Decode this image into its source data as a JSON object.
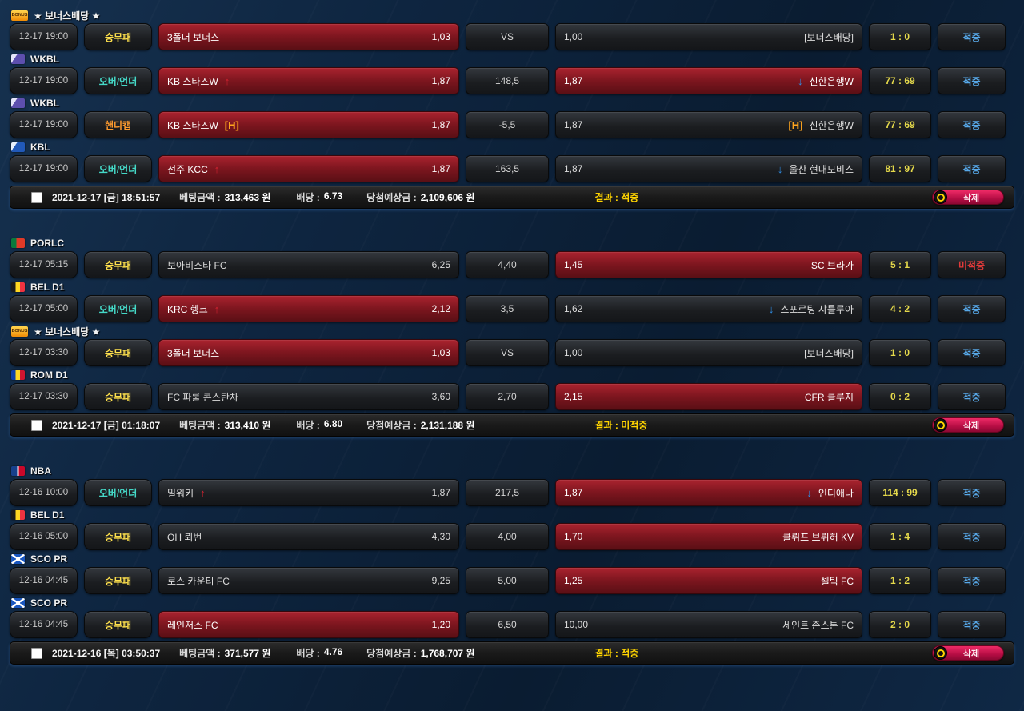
{
  "icons": {
    "bonus_text": "BONUS"
  },
  "markers": {
    "up": {
      "glyph": "↑",
      "color": "#d32330"
    },
    "down": {
      "glyph": "↓",
      "color": "#2f8fe8"
    },
    "h": {
      "glyph": "[H]",
      "color": "#ffa51e"
    }
  },
  "colors": {
    "selected_box": "#8d1a24",
    "hit_text": "#57a8e8",
    "miss_text": "#e03a3a",
    "score_text": "#e5d94b",
    "type_win_draw_lose": "#ffe14d",
    "type_over_under": "#45d9c8",
    "type_handicap": "#ff9b2e",
    "footer_result_text": "#ffd400",
    "delete_button": "#c41355"
  },
  "groups": [
    {
      "entries": [
        {
          "league": {
            "icon": "bonus",
            "name": "★ 보너스배당 ★"
          },
          "time": "12-17 19:00",
          "type": {
            "label": "승무패",
            "color": "#ffe14d"
          },
          "home": {
            "name": "3폴더 보너스",
            "odds": "1,03",
            "selected": true,
            "marker": null
          },
          "center": "VS",
          "away": {
            "name": "[보너스배당]",
            "odds": "1,00",
            "selected": false,
            "marker": null
          },
          "score": "1 : 0",
          "result": {
            "label": "적중",
            "state": "hit"
          }
        },
        {
          "league": {
            "icon": "wkbl",
            "name": "WKBL"
          },
          "time": "12-17 19:00",
          "type": {
            "label": "오버/언더",
            "color": "#45d9c8"
          },
          "home": {
            "name": "KB 스타즈W",
            "odds": "1,87",
            "selected": true,
            "marker": "up"
          },
          "center": "148,5",
          "away": {
            "name": "신한은행W",
            "odds": "1,87",
            "selected": true,
            "marker": "down"
          },
          "score": "77 : 69",
          "result": {
            "label": "적중",
            "state": "hit"
          }
        },
        {
          "league": {
            "icon": "wkbl",
            "name": "WKBL"
          },
          "time": "12-17 19:00",
          "type": {
            "label": "핸디캡",
            "color": "#ff9b2e"
          },
          "home": {
            "name": "KB 스타즈W",
            "odds": "1,87",
            "selected": true,
            "marker": "h"
          },
          "center": "-5,5",
          "away": {
            "name": "신한은행W",
            "odds": "1,87",
            "selected": false,
            "marker": "h"
          },
          "score": "77 : 69",
          "result": {
            "label": "적중",
            "state": "hit"
          }
        },
        {
          "league": {
            "icon": "kbl",
            "name": "KBL"
          },
          "time": "12-17 19:00",
          "type": {
            "label": "오버/언더",
            "color": "#45d9c8"
          },
          "home": {
            "name": "전주 KCC",
            "odds": "1,87",
            "selected": true,
            "marker": "up"
          },
          "center": "163,5",
          "away": {
            "name": "울산 현대모비스",
            "odds": "1,87",
            "selected": false,
            "marker": "down"
          },
          "score": "81 : 97",
          "result": {
            "label": "적중",
            "state": "hit"
          }
        }
      ],
      "summary": {
        "datetime": "2021-12-17 [금] 18:51:57",
        "bet_label": "베팅금액 :",
        "bet_value": "313,463 원",
        "odds_label": "배당 :",
        "odds_value": "6.73",
        "win_label": "당첨예상금 :",
        "win_value": "2,109,606 원",
        "result_text": "결과 : 적중",
        "delete_label": "삭제"
      }
    },
    {
      "entries": [
        {
          "league": {
            "icon": "por",
            "name": "PORLC"
          },
          "time": "12-17 05:15",
          "type": {
            "label": "승무패",
            "color": "#ffe14d"
          },
          "home": {
            "name": "보아비스타 FC",
            "odds": "6,25",
            "selected": false,
            "marker": null
          },
          "center": "4,40",
          "away": {
            "name": "SC 브라가",
            "odds": "1,45",
            "selected": true,
            "marker": null
          },
          "score": "5 : 1",
          "result": {
            "label": "미적중",
            "state": "miss"
          }
        },
        {
          "league": {
            "icon": "bel",
            "name": "BEL D1"
          },
          "time": "12-17 05:00",
          "type": {
            "label": "오버/언더",
            "color": "#45d9c8"
          },
          "home": {
            "name": "KRC 헹크",
            "odds": "2,12",
            "selected": true,
            "marker": "up"
          },
          "center": "3,5",
          "away": {
            "name": "스포르팅 샤를루아",
            "odds": "1,62",
            "selected": false,
            "marker": "down"
          },
          "score": "4 : 2",
          "result": {
            "label": "적중",
            "state": "hit"
          }
        },
        {
          "league": {
            "icon": "bonus",
            "name": "★ 보너스배당 ★"
          },
          "time": "12-17 03:30",
          "type": {
            "label": "승무패",
            "color": "#ffe14d"
          },
          "home": {
            "name": "3폴더 보너스",
            "odds": "1,03",
            "selected": true,
            "marker": null
          },
          "center": "VS",
          "away": {
            "name": "[보너스배당]",
            "odds": "1,00",
            "selected": false,
            "marker": null
          },
          "score": "1 : 0",
          "result": {
            "label": "적중",
            "state": "hit"
          }
        },
        {
          "league": {
            "icon": "rom",
            "name": "ROM D1"
          },
          "time": "12-17 03:30",
          "type": {
            "label": "승무패",
            "color": "#ffe14d"
          },
          "home": {
            "name": "FC 파룰 콘스탄차",
            "odds": "3,60",
            "selected": false,
            "marker": null
          },
          "center": "2,70",
          "away": {
            "name": "CFR 클루지",
            "odds": "2,15",
            "selected": true,
            "marker": null
          },
          "score": "0 : 2",
          "result": {
            "label": "적중",
            "state": "hit"
          }
        }
      ],
      "summary": {
        "datetime": "2021-12-17 [금] 01:18:07",
        "bet_label": "베팅금액 :",
        "bet_value": "313,410 원",
        "odds_label": "배당 :",
        "odds_value": "6.80",
        "win_label": "당첨예상금 :",
        "win_value": "2,131,188 원",
        "result_text": "결과 : 미적중",
        "delete_label": "삭제"
      }
    },
    {
      "entries": [
        {
          "league": {
            "icon": "nba",
            "name": "NBA"
          },
          "time": "12-16 10:00",
          "type": {
            "label": "오버/언더",
            "color": "#45d9c8"
          },
          "home": {
            "name": "밀워키",
            "odds": "1,87",
            "selected": false,
            "marker": "up"
          },
          "center": "217,5",
          "away": {
            "name": "인디애나",
            "odds": "1,87",
            "selected": true,
            "marker": "down"
          },
          "score": "114 : 99",
          "result": {
            "label": "적중",
            "state": "hit"
          }
        },
        {
          "league": {
            "icon": "bel",
            "name": "BEL D1"
          },
          "time": "12-16 05:00",
          "type": {
            "label": "승무패",
            "color": "#ffe14d"
          },
          "home": {
            "name": "OH 뢰번",
            "odds": "4,30",
            "selected": false,
            "marker": null
          },
          "center": "4,00",
          "away": {
            "name": "클뤼프 브뤼허 KV",
            "odds": "1,70",
            "selected": true,
            "marker": null
          },
          "score": "1 : 4",
          "result": {
            "label": "적중",
            "state": "hit"
          }
        },
        {
          "league": {
            "icon": "sco",
            "name": "SCO PR"
          },
          "time": "12-16 04:45",
          "type": {
            "label": "승무패",
            "color": "#ffe14d"
          },
          "home": {
            "name": "로스 카운티 FC",
            "odds": "9,25",
            "selected": false,
            "marker": null
          },
          "center": "5,00",
          "away": {
            "name": "셀틱 FC",
            "odds": "1,25",
            "selected": true,
            "marker": null
          },
          "score": "1 : 2",
          "result": {
            "label": "적중",
            "state": "hit"
          }
        },
        {
          "league": {
            "icon": "sco",
            "name": "SCO PR"
          },
          "time": "12-16 04:45",
          "type": {
            "label": "승무패",
            "color": "#ffe14d"
          },
          "home": {
            "name": "레인저스 FC",
            "odds": "1,20",
            "selected": true,
            "marker": null
          },
          "center": "6,50",
          "away": {
            "name": "세인트 존스톤 FC",
            "odds": "10,00",
            "selected": false,
            "marker": null
          },
          "score": "2 : 0",
          "result": {
            "label": "적중",
            "state": "hit"
          }
        }
      ],
      "summary": {
        "datetime": "2021-12-16 [목] 03:50:37",
        "bet_label": "베팅금액 :",
        "bet_value": "371,577 원",
        "odds_label": "배당 :",
        "odds_value": "4.76",
        "win_label": "당첨예상금 :",
        "win_value": "1,768,707 원",
        "result_text": "결과 : 적중",
        "delete_label": "삭제"
      }
    }
  ]
}
